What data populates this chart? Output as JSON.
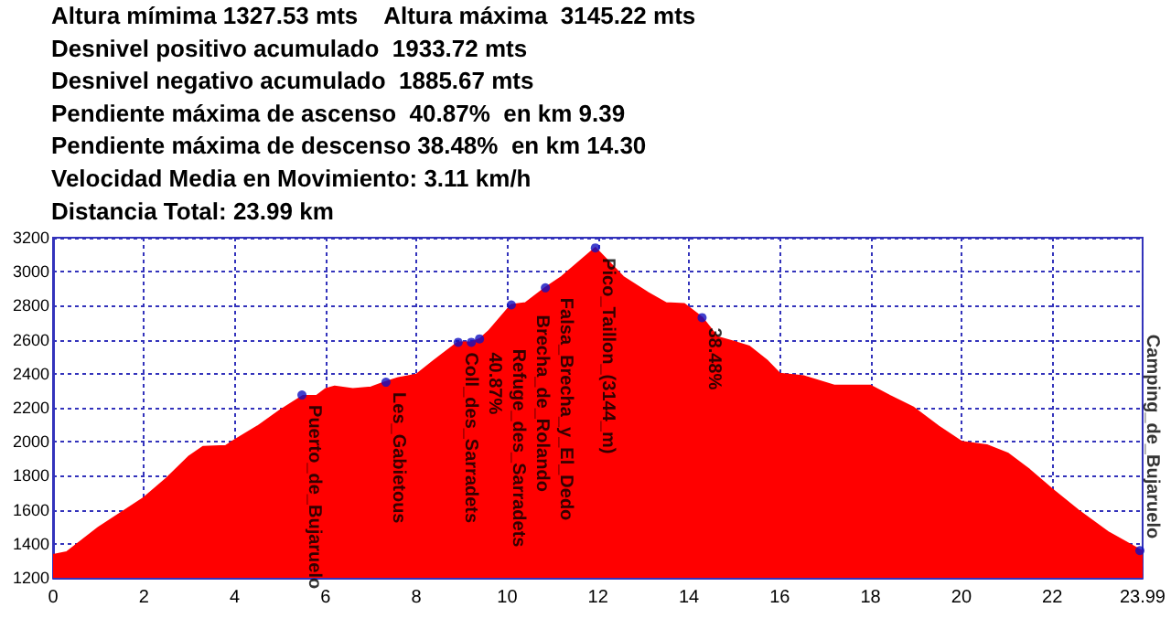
{
  "chart_data": {
    "type": "area",
    "annotations": [
      "Altura mímima 1327.53 mts    Altura máxima  3145.22 mts",
      "Desnivel positivo acumulado  1933.72 mts",
      "Desnivel negativo acumulado  1885.67 mts",
      "Pendiente máxima de ascenso  40.87%  en km 9.39",
      "Pendiente máxima de descenso 38.48%  en km 14.30",
      "Velocidad Media en Movimiento: 3.11 km/h",
      "Distancia Total: 23.99 km",
      {
        "text": "Puerto_de_Bujaruelo",
        "x": 5.48,
        "y": 2275
      },
      {
        "text": "Les_Gabietous",
        "x": 7.33,
        "y": 2350
      },
      {
        "text": "Coll_des_Sarradets",
        "x": 8.92,
        "y": 2585
      },
      {
        "text": "40.87%",
        "x": 9.21,
        "y": 2585
      },
      {
        "text": "Refuge_des_Sarradets",
        "x": 9.39,
        "y": 2605
      },
      {
        "text": "Brecha_de_Rolando",
        "x": 10.09,
        "y": 2805
      },
      {
        "text": "Falsa_Brecha_y_El_Dedo",
        "x": 10.84,
        "y": 2905
      },
      {
        "text": "Pico_Taillon_(3144_m)",
        "x": 11.94,
        "y": 3140
      },
      {
        "text": "38.48%",
        "x": 14.29,
        "y": 2730
      },
      {
        "text": "Camping_de_Bujaruelo",
        "x": 23.93,
        "y": 1360
      }
    ],
    "x": [
      0,
      0.3,
      1,
      2,
      2.5,
      3,
      3.3,
      3.8,
      4,
      4.5,
      5,
      5.5,
      5.8,
      6,
      6.2,
      6.6,
      7,
      7.3,
      7.6,
      8,
      8.38,
      8.92,
      9.21,
      9.4,
      9.59,
      10.09,
      10.4,
      10.84,
      11.2,
      11.94,
      12.55,
      13.1,
      13.5,
      13.9,
      14.29,
      14.63,
      14.97,
      15.33,
      15.73,
      16,
      16.54,
      17.2,
      18,
      18.42,
      18.95,
      19.5,
      20,
      20.56,
      21.03,
      21.5,
      22,
      22.58,
      23.25,
      23.79,
      23.99
    ],
    "series": [
      {
        "color": "#ff0000",
        "values": [
          1335,
          1350,
          1495,
          1670,
          1785,
          1915,
          1970,
          1975,
          2010,
          2090,
          2185,
          2270,
          2270,
          2310,
          2325,
          2310,
          2320,
          2350,
          2375,
          2395,
          2475,
          2585,
          2585,
          2605,
          2650,
          2805,
          2815,
          2905,
          2970,
          3140,
          2970,
          2875,
          2815,
          2810,
          2730,
          2615,
          2590,
          2560,
          2475,
          2400,
          2385,
          2330,
          2330,
          2270,
          2200,
          2090,
          2000,
          1980,
          1930,
          1835,
          1720,
          1595,
          1465,
          1385,
          1355
        ]
      }
    ],
    "xlim": [
      0,
      23.99
    ],
    "xticks": [
      0,
      2,
      4,
      6,
      8,
      10,
      12,
      14,
      16,
      18,
      20,
      22,
      23.99
    ],
    "ylim": [
      1200,
      3200
    ],
    "yticks": [
      1200,
      1400,
      1600,
      1800,
      2000,
      2200,
      2400,
      2600,
      2800,
      3000,
      3200
    ],
    "grid": true,
    "marker": "none"
  }
}
